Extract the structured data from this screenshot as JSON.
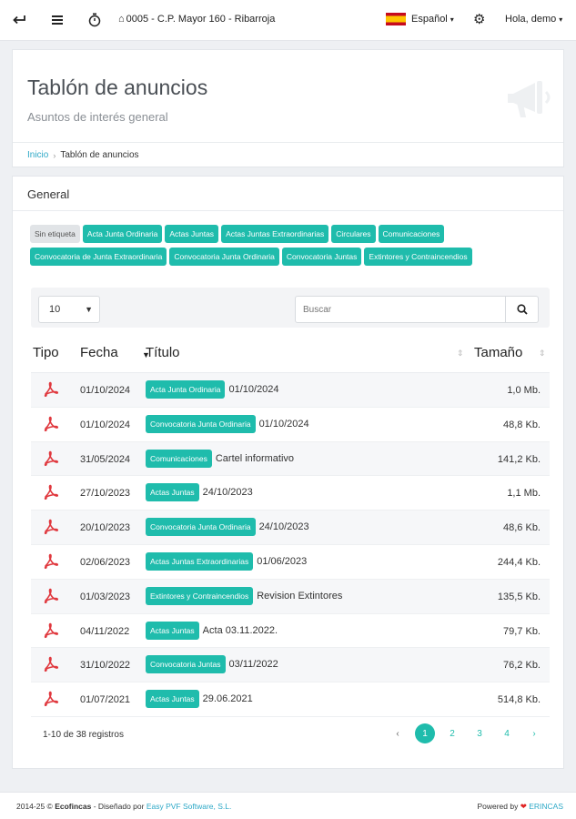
{
  "topbar": {
    "location": "0005 - C.P. Mayor 160 - Ribarroja",
    "language": "Español",
    "greeting": "Hola, demo"
  },
  "header": {
    "title": "Tablón de anuncios",
    "subtitle": "Asuntos de interés general",
    "breadcrumb": {
      "home": "Inicio",
      "current": "Tablón de anuncios"
    }
  },
  "section": {
    "title": "General"
  },
  "tags": [
    "Sin etiqueta",
    "Acta Junta Ordinaria",
    "Actas Juntas",
    "Actas Juntas Extraordinarias",
    "Circulares",
    "Comunicaciones",
    "Convocatoria de Junta Extraordinaria",
    "Convocatoria Junta Ordinaria",
    "Convocatoria Juntas",
    "Extintores y Contraincendios"
  ],
  "controls": {
    "page_size": "10",
    "search_placeholder": "Buscar"
  },
  "table": {
    "columns": {
      "tipo": "Tipo",
      "fecha": "Fecha",
      "titulo": "Título",
      "tamano": "Tamaño"
    },
    "rows": [
      {
        "fecha": "01/10/2024",
        "tag": "Acta Junta Ordinaria",
        "title": "01/10/2024",
        "size": "1,0 Mb."
      },
      {
        "fecha": "01/10/2024",
        "tag": "Convocatoria Junta Ordinaria",
        "title": "01/10/2024",
        "size": "48,8 Kb."
      },
      {
        "fecha": "31/05/2024",
        "tag": "Comunicaciones",
        "title": "Cartel informativo",
        "size": "141,2 Kb."
      },
      {
        "fecha": "27/10/2023",
        "tag": "Actas Juntas",
        "title": "24/10/2023",
        "size": "1,1 Mb."
      },
      {
        "fecha": "20/10/2023",
        "tag": "Convocatoria Junta Ordinaria",
        "title": "24/10/2023",
        "size": "48,6 Kb."
      },
      {
        "fecha": "02/06/2023",
        "tag": "Actas Juntas Extraordinarias",
        "title": "01/06/2023",
        "size": "244,4 Kb."
      },
      {
        "fecha": "01/03/2023",
        "tag": "Extintores y Contraincendios",
        "title": "Revision Extintores",
        "size": "135,5 Kb."
      },
      {
        "fecha": "04/11/2022",
        "tag": "Actas Juntas",
        "title": "Acta 03.11.2022.",
        "size": "79,7 Kb."
      },
      {
        "fecha": "31/10/2022",
        "tag": "Convocatoria Juntas",
        "title": "03/11/2022",
        "size": "76,2 Kb."
      },
      {
        "fecha": "01/07/2021",
        "tag": "Actas Juntas",
        "title": "29.06.2021",
        "size": "514,8 Kb."
      }
    ],
    "info": "1-10 de 38 registros"
  },
  "pagination": {
    "pages": [
      "1",
      "2",
      "3",
      "4"
    ],
    "active": "1"
  },
  "footer": {
    "copyright": "2014-25 © ",
    "company": "Ecofincas",
    "designed_by": " - Diseñado por ",
    "designer": "Easy PVF Software, S.L.",
    "powered_by": "Powered by ",
    "powered_brand": "ERINCAS"
  },
  "colors": {
    "accent": "#1fbcac",
    "link": "#2ea9c7",
    "pdf": "#e0383e"
  }
}
